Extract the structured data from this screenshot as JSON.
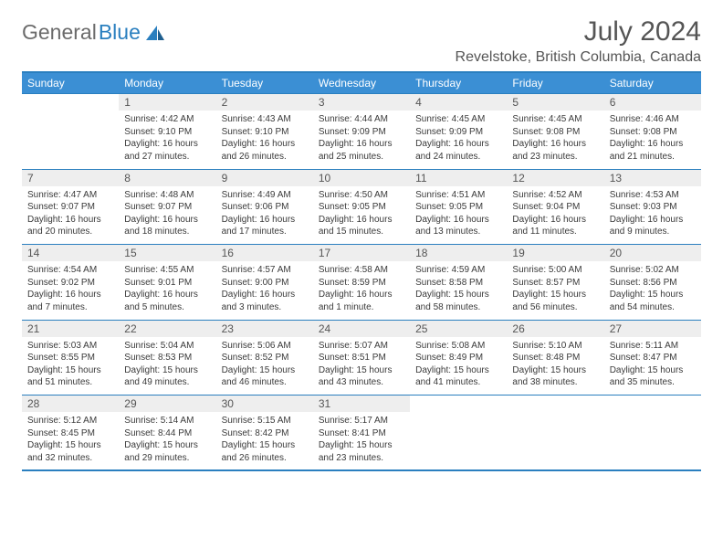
{
  "logo": {
    "text1": "General",
    "text2": "Blue"
  },
  "title": "July 2024",
  "location": "Revelstoke, British Columbia, Canada",
  "weekdays": [
    "Sunday",
    "Monday",
    "Tuesday",
    "Wednesday",
    "Thursday",
    "Friday",
    "Saturday"
  ],
  "colors": {
    "header_bg": "#3b8fd4",
    "rule": "#2a7fbf",
    "daynum_bg": "#eeeeee",
    "text": "#3a3a3a"
  },
  "weeks": [
    {
      "nums": [
        "",
        "1",
        "2",
        "3",
        "4",
        "5",
        "6"
      ],
      "cells": [
        [],
        [
          "Sunrise: 4:42 AM",
          "Sunset: 9:10 PM",
          "Daylight: 16 hours",
          "and 27 minutes."
        ],
        [
          "Sunrise: 4:43 AM",
          "Sunset: 9:10 PM",
          "Daylight: 16 hours",
          "and 26 minutes."
        ],
        [
          "Sunrise: 4:44 AM",
          "Sunset: 9:09 PM",
          "Daylight: 16 hours",
          "and 25 minutes."
        ],
        [
          "Sunrise: 4:45 AM",
          "Sunset: 9:09 PM",
          "Daylight: 16 hours",
          "and 24 minutes."
        ],
        [
          "Sunrise: 4:45 AM",
          "Sunset: 9:08 PM",
          "Daylight: 16 hours",
          "and 23 minutes."
        ],
        [
          "Sunrise: 4:46 AM",
          "Sunset: 9:08 PM",
          "Daylight: 16 hours",
          "and 21 minutes."
        ]
      ]
    },
    {
      "nums": [
        "7",
        "8",
        "9",
        "10",
        "11",
        "12",
        "13"
      ],
      "cells": [
        [
          "Sunrise: 4:47 AM",
          "Sunset: 9:07 PM",
          "Daylight: 16 hours",
          "and 20 minutes."
        ],
        [
          "Sunrise: 4:48 AM",
          "Sunset: 9:07 PM",
          "Daylight: 16 hours",
          "and 18 minutes."
        ],
        [
          "Sunrise: 4:49 AM",
          "Sunset: 9:06 PM",
          "Daylight: 16 hours",
          "and 17 minutes."
        ],
        [
          "Sunrise: 4:50 AM",
          "Sunset: 9:05 PM",
          "Daylight: 16 hours",
          "and 15 minutes."
        ],
        [
          "Sunrise: 4:51 AM",
          "Sunset: 9:05 PM",
          "Daylight: 16 hours",
          "and 13 minutes."
        ],
        [
          "Sunrise: 4:52 AM",
          "Sunset: 9:04 PM",
          "Daylight: 16 hours",
          "and 11 minutes."
        ],
        [
          "Sunrise: 4:53 AM",
          "Sunset: 9:03 PM",
          "Daylight: 16 hours",
          "and 9 minutes."
        ]
      ]
    },
    {
      "nums": [
        "14",
        "15",
        "16",
        "17",
        "18",
        "19",
        "20"
      ],
      "cells": [
        [
          "Sunrise: 4:54 AM",
          "Sunset: 9:02 PM",
          "Daylight: 16 hours",
          "and 7 minutes."
        ],
        [
          "Sunrise: 4:55 AM",
          "Sunset: 9:01 PM",
          "Daylight: 16 hours",
          "and 5 minutes."
        ],
        [
          "Sunrise: 4:57 AM",
          "Sunset: 9:00 PM",
          "Daylight: 16 hours",
          "and 3 minutes."
        ],
        [
          "Sunrise: 4:58 AM",
          "Sunset: 8:59 PM",
          "Daylight: 16 hours",
          "and 1 minute."
        ],
        [
          "Sunrise: 4:59 AM",
          "Sunset: 8:58 PM",
          "Daylight: 15 hours",
          "and 58 minutes."
        ],
        [
          "Sunrise: 5:00 AM",
          "Sunset: 8:57 PM",
          "Daylight: 15 hours",
          "and 56 minutes."
        ],
        [
          "Sunrise: 5:02 AM",
          "Sunset: 8:56 PM",
          "Daylight: 15 hours",
          "and 54 minutes."
        ]
      ]
    },
    {
      "nums": [
        "21",
        "22",
        "23",
        "24",
        "25",
        "26",
        "27"
      ],
      "cells": [
        [
          "Sunrise: 5:03 AM",
          "Sunset: 8:55 PM",
          "Daylight: 15 hours",
          "and 51 minutes."
        ],
        [
          "Sunrise: 5:04 AM",
          "Sunset: 8:53 PM",
          "Daylight: 15 hours",
          "and 49 minutes."
        ],
        [
          "Sunrise: 5:06 AM",
          "Sunset: 8:52 PM",
          "Daylight: 15 hours",
          "and 46 minutes."
        ],
        [
          "Sunrise: 5:07 AM",
          "Sunset: 8:51 PM",
          "Daylight: 15 hours",
          "and 43 minutes."
        ],
        [
          "Sunrise: 5:08 AM",
          "Sunset: 8:49 PM",
          "Daylight: 15 hours",
          "and 41 minutes."
        ],
        [
          "Sunrise: 5:10 AM",
          "Sunset: 8:48 PM",
          "Daylight: 15 hours",
          "and 38 minutes."
        ],
        [
          "Sunrise: 5:11 AM",
          "Sunset: 8:47 PM",
          "Daylight: 15 hours",
          "and 35 minutes."
        ]
      ]
    },
    {
      "nums": [
        "28",
        "29",
        "30",
        "31",
        "",
        "",
        ""
      ],
      "cells": [
        [
          "Sunrise: 5:12 AM",
          "Sunset: 8:45 PM",
          "Daylight: 15 hours",
          "and 32 minutes."
        ],
        [
          "Sunrise: 5:14 AM",
          "Sunset: 8:44 PM",
          "Daylight: 15 hours",
          "and 29 minutes."
        ],
        [
          "Sunrise: 5:15 AM",
          "Sunset: 8:42 PM",
          "Daylight: 15 hours",
          "and 26 minutes."
        ],
        [
          "Sunrise: 5:17 AM",
          "Sunset: 8:41 PM",
          "Daylight: 15 hours",
          "and 23 minutes."
        ],
        [],
        [],
        []
      ]
    }
  ]
}
